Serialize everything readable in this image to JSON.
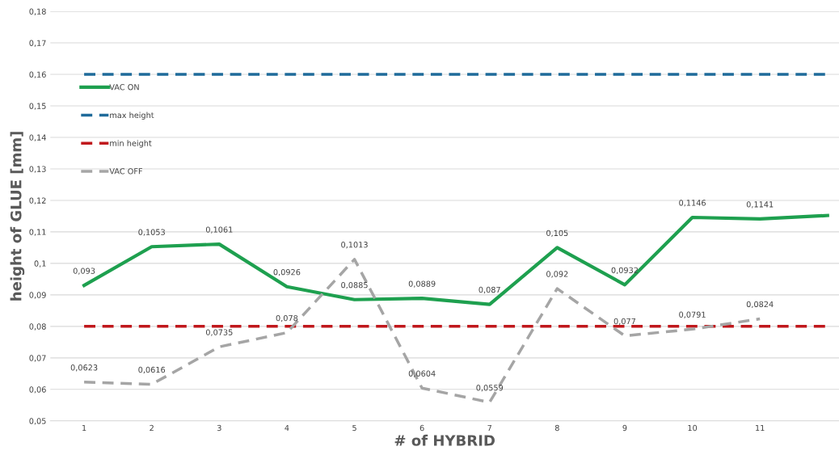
{
  "chart_data": {
    "type": "line",
    "xlabel": "# of HYBRID",
    "ylabel": "height of GLUE [mm]",
    "categories": [
      "1",
      "2",
      "3",
      "4",
      "5",
      "6",
      "7",
      "8",
      "9",
      "10",
      "11",
      null
    ],
    "series": [
      {
        "name": "VAC ON",
        "color": "#1ea04f",
        "line_style": "solid",
        "values": [
          0.093,
          0.1053,
          0.1061,
          0.0926,
          0.0885,
          0.0889,
          0.087,
          0.105,
          0.0932,
          0.1146,
          0.1141,
          0.1152
        ],
        "value_labels": [
          "0,093",
          "0,1053",
          "0,1061",
          "0,0926",
          "0,0885",
          "0,0889",
          "0,087",
          "0,105",
          "0,0932",
          "0,1146",
          "0,1141",
          null
        ]
      },
      {
        "name": "max height",
        "color": "#1f6b9a",
        "line_style": "dashed",
        "values": [
          0.16,
          0.16,
          0.16,
          0.16,
          0.16,
          0.16,
          0.16,
          0.16,
          0.16,
          0.16,
          0.16,
          0.16
        ]
      },
      {
        "name": "min height",
        "color": "#c0181c",
        "line_style": "dashed",
        "values": [
          0.08,
          0.08,
          0.08,
          0.08,
          0.08,
          0.08,
          0.08,
          0.08,
          0.08,
          0.08,
          0.08,
          0.08
        ]
      },
      {
        "name": "VAC OFF",
        "color": "#a5a5a5",
        "line_style": "dashed",
        "values": [
          0.0623,
          0.0616,
          0.0735,
          0.078,
          0.1013,
          0.0604,
          0.0559,
          0.092,
          0.077,
          0.0791,
          0.0824,
          null
        ],
        "value_labels": [
          "0,0623",
          "0,0616",
          "0,0735",
          "0,078",
          "0,1013",
          "0,0604",
          "0,0559",
          "0,092",
          "0,077",
          "0,0791",
          "0,0824",
          null
        ]
      }
    ],
    "ylim": [
      0.05,
      0.18
    ],
    "yticks": [
      {
        "value": 0.05,
        "label": "0,05"
      },
      {
        "value": 0.06,
        "label": "0,06"
      },
      {
        "value": 0.07,
        "label": "0,07"
      },
      {
        "value": 0.08,
        "label": "0,08"
      },
      {
        "value": 0.09,
        "label": "0,09"
      },
      {
        "value": 0.1,
        "label": "0,1"
      },
      {
        "value": 0.11,
        "label": "0,11"
      },
      {
        "value": 0.12,
        "label": "0,12"
      },
      {
        "value": 0.13,
        "label": "0,13"
      },
      {
        "value": 0.14,
        "label": "0,14"
      },
      {
        "value": 0.15,
        "label": "0,15"
      },
      {
        "value": 0.16,
        "label": "0,16"
      },
      {
        "value": 0.17,
        "label": "0,17"
      },
      {
        "value": 0.18,
        "label": "0,18"
      }
    ],
    "grid": "y",
    "legend": "top left",
    "marker": "none"
  }
}
